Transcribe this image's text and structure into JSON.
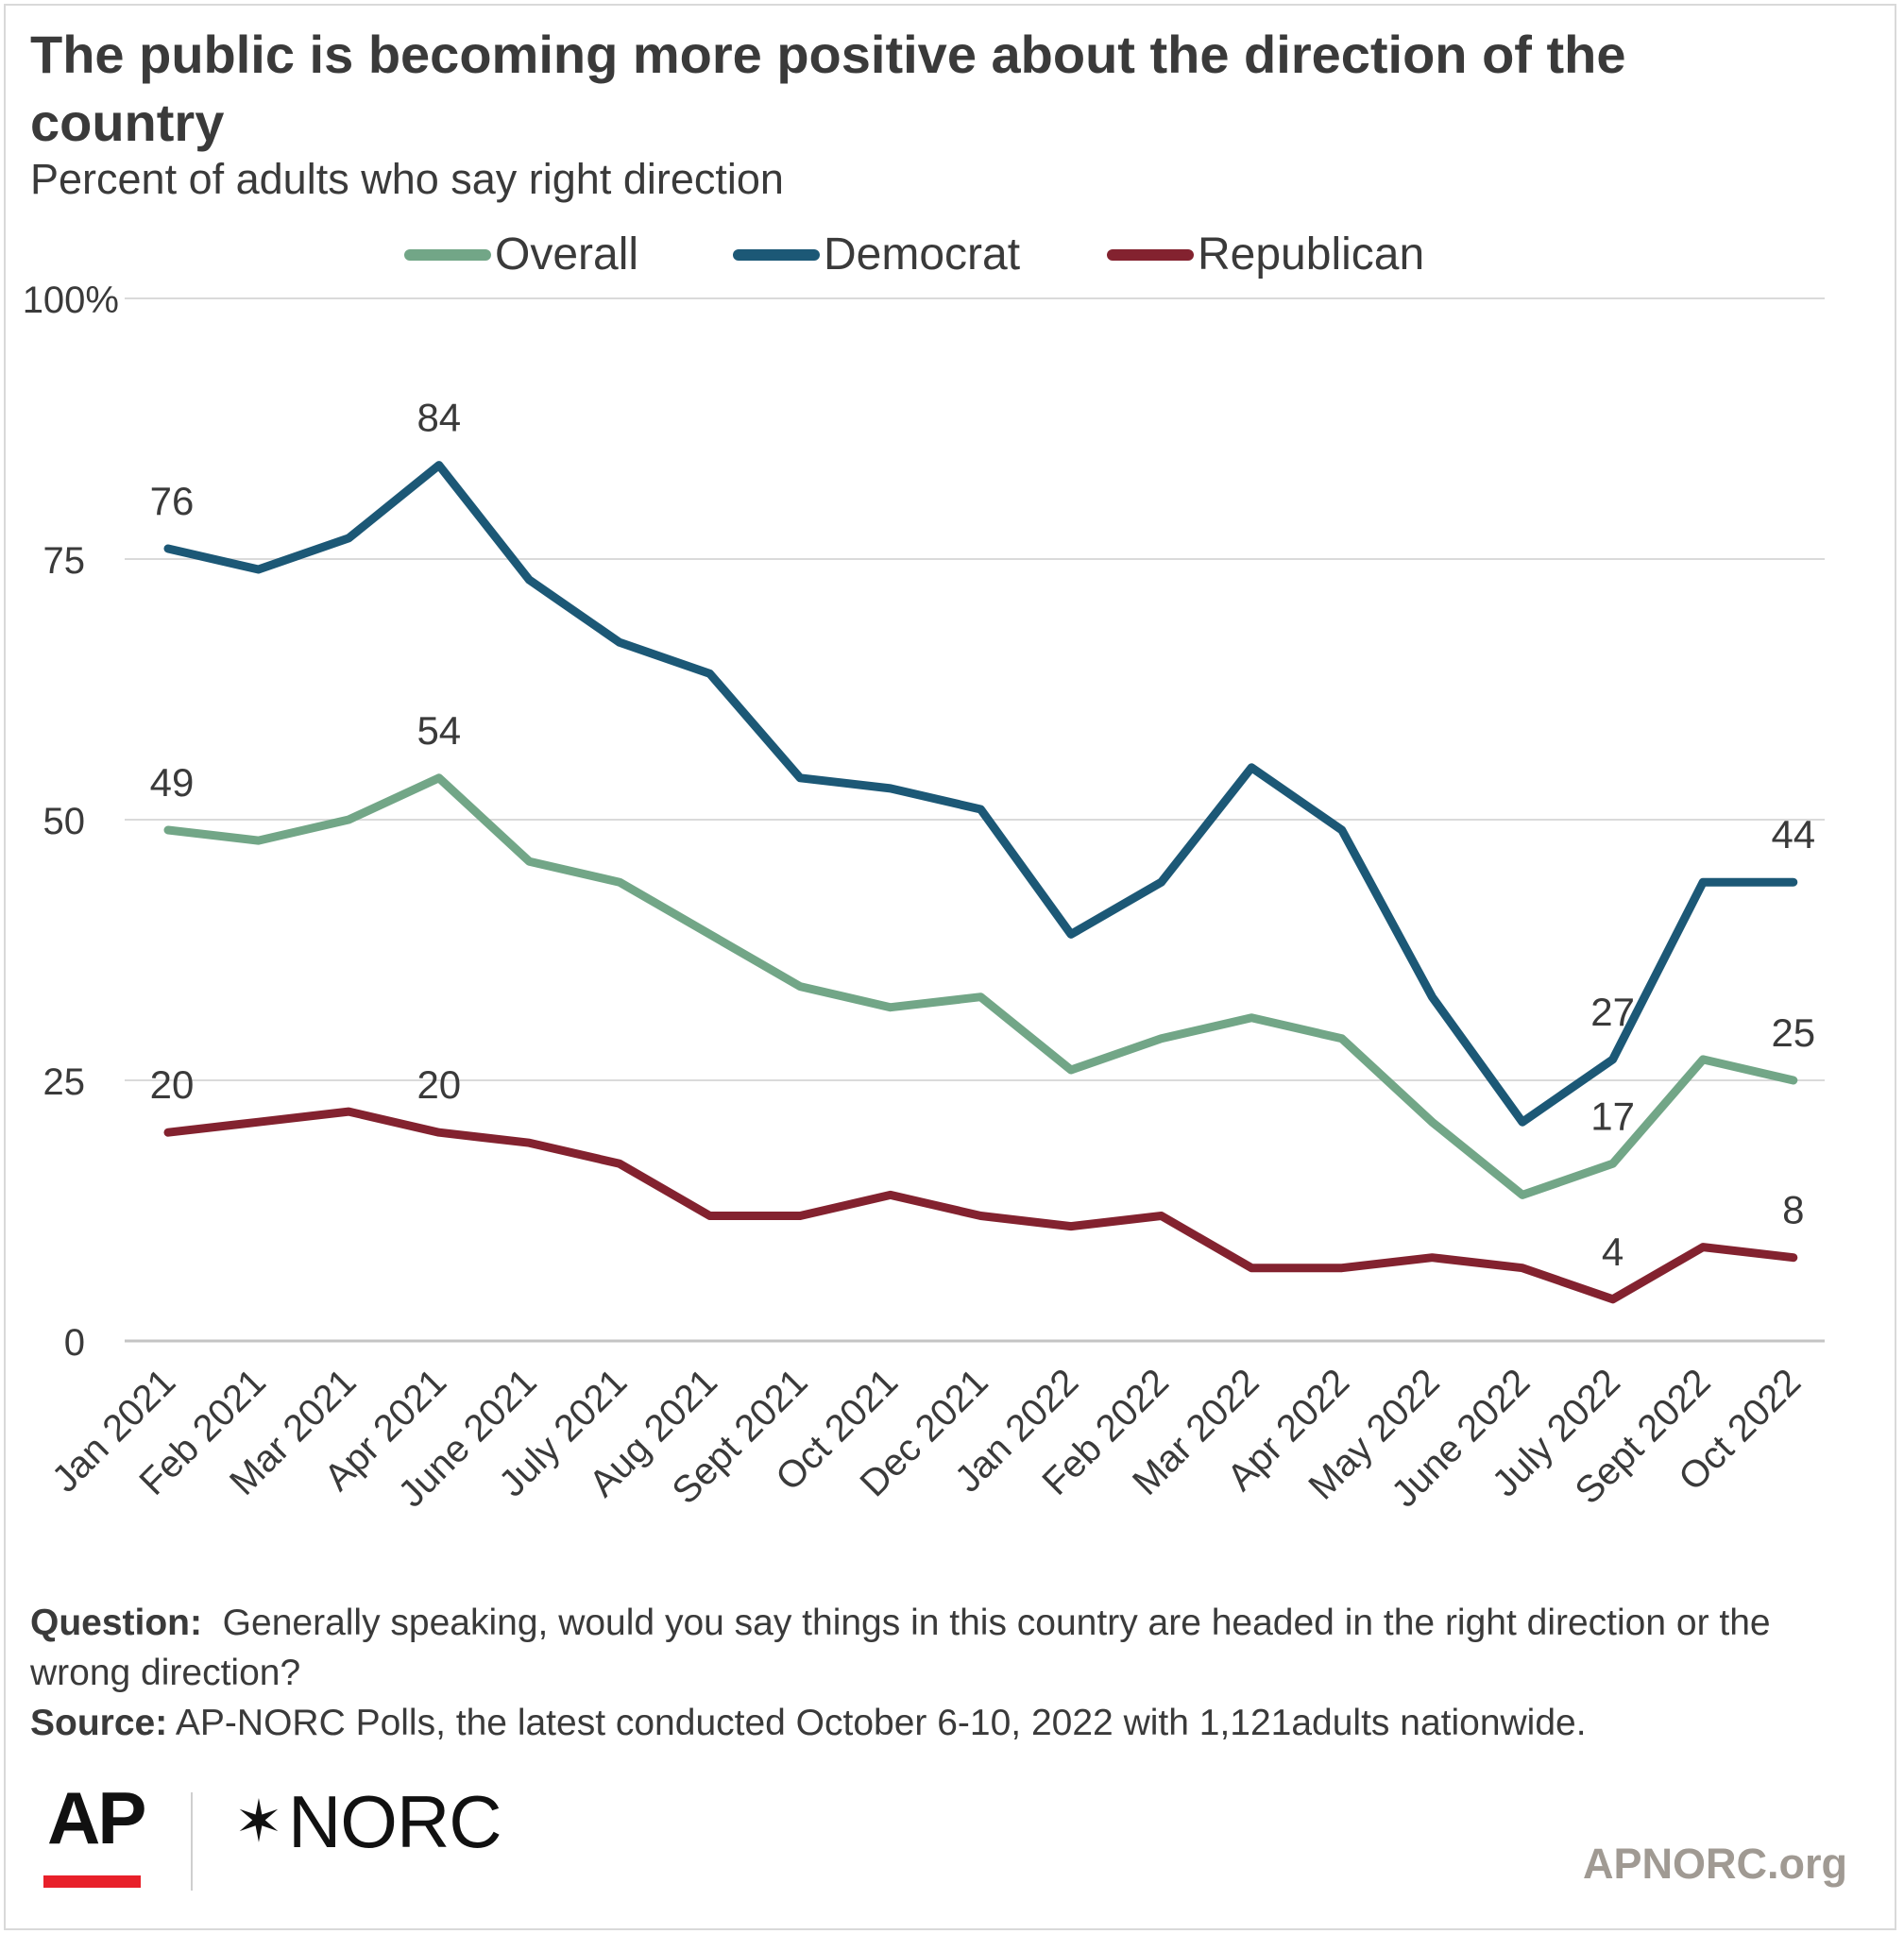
{
  "header": {
    "title": "The public is becoming more positive about the direction of the country",
    "subtitle": "Percent of adults who say right direction"
  },
  "chart_data": {
    "type": "line",
    "title": "The public is becoming more positive about the direction of the country",
    "subtitle": "Percent of adults who say right direction",
    "xlabel": "",
    "ylabel": "",
    "ylim": [
      0,
      100
    ],
    "yticks": [
      "0",
      "25",
      "50",
      "75",
      "100%"
    ],
    "ytick_values": [
      0,
      25,
      50,
      75,
      100
    ],
    "grid": true,
    "legend_position": "top-center",
    "categories": [
      "Jan 2021",
      "Feb 2021",
      "Mar 2021",
      "Apr 2021",
      "June 2021",
      "July 2021",
      "Aug 2021",
      "Sept 2021",
      "Oct 2021",
      "Dec 2021",
      "Jan 2022",
      "Feb 2022",
      "Mar 2022",
      "Apr 2022",
      "May 2022",
      "June 2022",
      "July 2022",
      "Sept 2022",
      "Oct 2022"
    ],
    "series": [
      {
        "name": "Overall",
        "color": "#72a687",
        "values": [
          49,
          48,
          50,
          54,
          46,
          44,
          39,
          34,
          32,
          33,
          26,
          29,
          31,
          29,
          21,
          14,
          17,
          27,
          25
        ],
        "labels": [
          {
            "index": 0,
            "text": "49",
            "pos": "above"
          },
          {
            "index": 3,
            "text": "54",
            "pos": "above"
          },
          {
            "index": 16,
            "text": "17",
            "pos": "above"
          },
          {
            "index": 18,
            "text": "25",
            "pos": "above"
          }
        ]
      },
      {
        "name": "Democrat",
        "color": "#1c5876",
        "values": [
          76,
          74,
          77,
          84,
          73,
          67,
          64,
          54,
          53,
          51,
          39,
          44,
          55,
          49,
          33,
          21,
          27,
          44,
          44
        ],
        "labels": [
          {
            "index": 0,
            "text": "76",
            "pos": "above"
          },
          {
            "index": 3,
            "text": "84",
            "pos": "above"
          },
          {
            "index": 16,
            "text": "27",
            "pos": "above"
          },
          {
            "index": 18,
            "text": "44",
            "pos": "above"
          }
        ]
      },
      {
        "name": "Republican",
        "color": "#83222f",
        "values": [
          20,
          21,
          22,
          20,
          19,
          17,
          12,
          12,
          14,
          12,
          11,
          12,
          7,
          7,
          8,
          7,
          4,
          9,
          8
        ],
        "labels": [
          {
            "index": 0,
            "text": "20",
            "pos": "above"
          },
          {
            "index": 3,
            "text": "20",
            "pos": "above"
          },
          {
            "index": 16,
            "text": "4",
            "pos": "above"
          },
          {
            "index": 18,
            "text": "8",
            "pos": "above"
          }
        ]
      }
    ]
  },
  "footer": {
    "question_label": "Question:",
    "question_text": "Generally speaking, would you say things in this country are headed in the right direction or the wrong direction?",
    "source_label": "Source:",
    "source_text": "AP-NORC Polls, the latest conducted October 6-10, 2022 with 1,121adults nationwide."
  },
  "branding": {
    "ap_logo": "AP",
    "ap_bar_color": "#e8202a",
    "norc_icon": "star-asterisk-icon",
    "norc_logo": "NORC",
    "site": "APNORC.org"
  }
}
